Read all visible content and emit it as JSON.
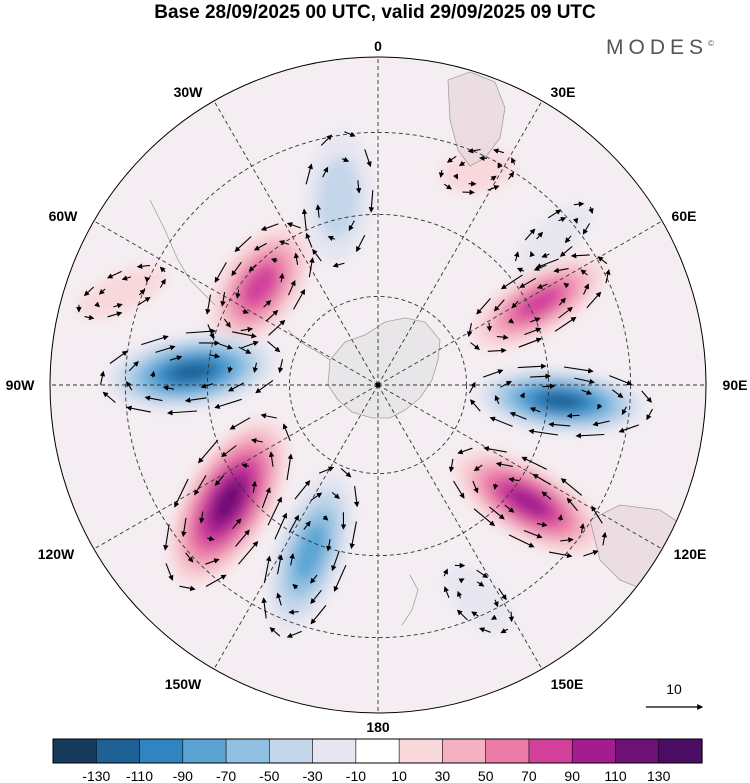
{
  "title": "Base 28/09/2025 00 UTC, valid 29/09/2025 09 UTC",
  "brand": "MODES",
  "brand_mark": "©",
  "longitude_labels": {
    "deg0": "0",
    "deg30e": "30E",
    "deg60e": "60E",
    "deg90e": "90E",
    "deg120e": "120E",
    "deg150e": "150E",
    "deg180": "180",
    "deg150w": "150W",
    "deg120w": "120W",
    "deg90w": "90W",
    "deg60w": "60W",
    "deg30w": "30W"
  },
  "vector_reference": {
    "label": "10"
  },
  "colorbar": {
    "colors": [
      "#163b5c",
      "#1e6195",
      "#2f85c0",
      "#5aa4d4",
      "#91c1e2",
      "#c3d6ea",
      "#e6e6f1",
      "#ffffff",
      "#f9d8dc",
      "#f3b1c1",
      "#ea7ba6",
      "#d2409c",
      "#a31d90",
      "#6e1174",
      "#4a0d63"
    ],
    "ticks": [
      "-130",
      "-110",
      "-90",
      "-70",
      "-50",
      "-30",
      "-10",
      "10",
      "30",
      "50",
      "70",
      "90",
      "110",
      "130"
    ]
  },
  "anomaly_field": {
    "cells": [
      {
        "name": "positive-anomaly-30w-60w",
        "angle_deg": -50,
        "radius_frac": 0.47,
        "along": 135,
        "across": 78,
        "rotation": -55,
        "intensity": 4
      },
      {
        "name": "negative-anomaly-15w",
        "angle_deg": -12,
        "radius_frac": 0.58,
        "along": 135,
        "across": 68,
        "rotation": -85,
        "intensity": -2
      },
      {
        "name": "positive-anomaly-30e",
        "angle_deg": 25,
        "radius_frac": 0.72,
        "along": 75,
        "across": 42,
        "rotation": -10,
        "intensity": 1
      },
      {
        "name": "negative-anomaly-50e",
        "angle_deg": 50,
        "radius_frac": 0.7,
        "along": 95,
        "across": 38,
        "rotation": -40,
        "intensity": -1
      },
      {
        "name": "positive-anomaly-65e",
        "angle_deg": 63,
        "radius_frac": 0.55,
        "along": 150,
        "across": 62,
        "rotation": -30,
        "intensity": 4
      },
      {
        "name": "negative-anomaly-90e",
        "angle_deg": 95,
        "radius_frac": 0.56,
        "along": 175,
        "across": 65,
        "rotation": 5,
        "intensity": -6
      },
      {
        "name": "positive-anomaly-125e",
        "angle_deg": 128,
        "radius_frac": 0.58,
        "along": 165,
        "across": 72,
        "rotation": 30,
        "intensity": 5
      },
      {
        "name": "negative-anomaly-155e",
        "angle_deg": 155,
        "radius_frac": 0.72,
        "along": 85,
        "across": 45,
        "rotation": 45,
        "intensity": -1
      },
      {
        "name": "negative-anomaly-160w",
        "angle_deg": -158,
        "radius_frac": 0.55,
        "along": 170,
        "across": 72,
        "rotation": -70,
        "intensity": -4
      },
      {
        "name": "positive-anomaly-130w",
        "angle_deg": -128,
        "radius_frac": 0.58,
        "along": 185,
        "across": 88,
        "rotation": -60,
        "intensity": 6
      },
      {
        "name": "negative-anomaly-90w",
        "angle_deg": -86,
        "radius_frac": 0.57,
        "along": 175,
        "across": 75,
        "rotation": -8,
        "intensity": -6
      },
      {
        "name": "positive-anomaly-70w",
        "angle_deg": -70,
        "radius_frac": 0.83,
        "along": 95,
        "across": 38,
        "rotation": -25,
        "intensity": 1
      }
    ]
  }
}
